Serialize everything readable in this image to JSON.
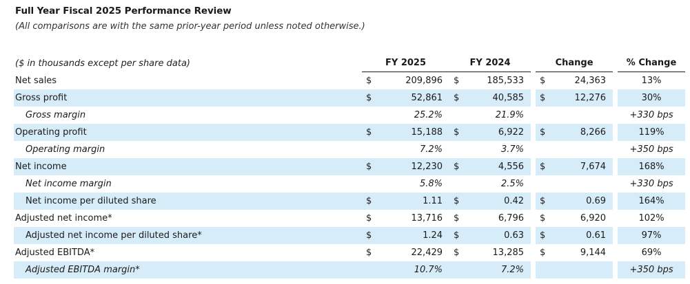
{
  "title": "Full Year Fiscal 2025 Performance Review",
  "subtitle": "(All comparisons are with the same prior-year period unless noted otherwise.)",
  "table": {
    "header_label": "($ in thousands except per share data)",
    "columns": [
      "FY 2025",
      "FY 2024",
      "Change",
      "% Change"
    ],
    "rows": [
      {
        "label": "Net sales",
        "indent": false,
        "italic": false,
        "shaded": false,
        "cur": [
          "$",
          "$",
          "$"
        ],
        "fy2025": "209,896",
        "fy2024": "185,533",
        "change": "24,363",
        "pct": "13%"
      },
      {
        "label": "Gross profit",
        "indent": false,
        "italic": false,
        "shaded": true,
        "cur": [
          "$",
          "$",
          "$"
        ],
        "fy2025": "52,861",
        "fy2024": "40,585",
        "change": "12,276",
        "pct": "30%"
      },
      {
        "label": "Gross margin",
        "indent": true,
        "italic": true,
        "shaded": false,
        "cur": [
          "",
          "",
          ""
        ],
        "fy2025": "25.2%",
        "fy2024": "21.9%",
        "change": "",
        "pct": "+330 bps"
      },
      {
        "label": "Operating profit",
        "indent": false,
        "italic": false,
        "shaded": true,
        "cur": [
          "$",
          "$",
          "$"
        ],
        "fy2025": "15,188",
        "fy2024": "6,922",
        "change": "8,266",
        "pct": "119%"
      },
      {
        "label": "Operating margin",
        "indent": true,
        "italic": true,
        "shaded": false,
        "cur": [
          "",
          "",
          ""
        ],
        "fy2025": "7.2%",
        "fy2024": "3.7%",
        "change": "",
        "pct": "+350 bps"
      },
      {
        "label": "Net income",
        "indent": false,
        "italic": false,
        "shaded": true,
        "cur": [
          "$",
          "$",
          "$"
        ],
        "fy2025": "12,230",
        "fy2024": "4,556",
        "change": "7,674",
        "pct": "168%"
      },
      {
        "label": "Net income margin",
        "indent": true,
        "italic": true,
        "shaded": false,
        "cur": [
          "",
          "",
          ""
        ],
        "fy2025": "5.8%",
        "fy2024": "2.5%",
        "change": "",
        "pct": "+330 bps"
      },
      {
        "label": "Net income per diluted share",
        "indent": true,
        "italic": false,
        "shaded": true,
        "cur": [
          "$",
          "$",
          "$"
        ],
        "fy2025": "1.11",
        "fy2024": "0.42",
        "change": "0.69",
        "pct": "164%"
      },
      {
        "label": "Adjusted net income*",
        "indent": false,
        "italic": false,
        "shaded": false,
        "cur": [
          "$",
          "$",
          "$"
        ],
        "fy2025": "13,716",
        "fy2024": "6,796",
        "change": "6,920",
        "pct": "102%"
      },
      {
        "label": "Adjusted net income per diluted share*",
        "indent": true,
        "italic": false,
        "shaded": true,
        "cur": [
          "$",
          "$",
          "$"
        ],
        "fy2025": "1.24",
        "fy2024": "0.63",
        "change": "0.61",
        "pct": "97%"
      },
      {
        "label": "Adjusted EBITDA*",
        "indent": false,
        "italic": false,
        "shaded": false,
        "cur": [
          "$",
          "$",
          "$"
        ],
        "fy2025": "22,429",
        "fy2024": "13,285",
        "change": "9,144",
        "pct": "69%"
      },
      {
        "label": "Adjusted EBITDA margin*",
        "indent": true,
        "italic": true,
        "shaded": true,
        "cur": [
          "",
          "",
          ""
        ],
        "fy2025": "10.7%",
        "fy2024": "7.2%",
        "change": "",
        "pct": "+350 bps"
      }
    ]
  },
  "colors": {
    "shade": "#d6ecf8",
    "text": "#1a1a1a"
  }
}
